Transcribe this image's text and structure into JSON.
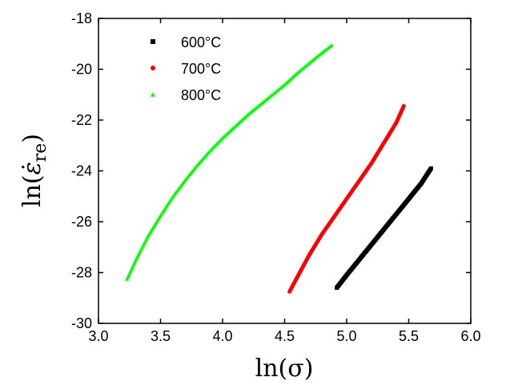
{
  "chart_data": {
    "type": "scatter",
    "xlabel": "ln(σ)",
    "ylabel": {
      "prefix": "ln(",
      "symbol": "ε̇",
      "subscript": "re",
      "suffix": ")"
    },
    "xlim": [
      3.0,
      6.0
    ],
    "ylim": [
      -30,
      -18
    ],
    "xticks": [
      "3.0",
      "3.5",
      "4.0",
      "4.5",
      "5.0",
      "5.5",
      "6.0"
    ],
    "yticks": [
      "-30",
      "-28",
      "-26",
      "-24",
      "-22",
      "-20",
      "-18"
    ],
    "grid": false,
    "legend_position": "top-left",
    "series": [
      {
        "name": "600°C",
        "marker": "square",
        "color": "#000000",
        "x": [
          4.92,
          5.0,
          5.1,
          5.2,
          5.3,
          5.4,
          5.5,
          5.6,
          5.68
        ],
        "y": [
          -28.6,
          -28.1,
          -27.5,
          -26.9,
          -26.3,
          -25.7,
          -25.1,
          -24.5,
          -23.9
        ]
      },
      {
        "name": "700°C",
        "marker": "circle",
        "color": "#ff0000",
        "x": [
          4.54,
          4.6,
          4.7,
          4.8,
          4.9,
          5.0,
          5.1,
          5.2,
          5.3,
          5.4,
          5.46
        ],
        "y": [
          -28.75,
          -28.2,
          -27.3,
          -26.5,
          -25.8,
          -25.1,
          -24.4,
          -23.7,
          -22.9,
          -22.1,
          -21.45
        ]
      },
      {
        "name": "800°C",
        "marker": "triangle",
        "color": "#00ff00",
        "x": [
          3.23,
          3.3,
          3.4,
          3.5,
          3.6,
          3.7,
          3.8,
          3.9,
          4.0,
          4.1,
          4.2,
          4.3,
          4.4,
          4.5,
          4.6,
          4.7,
          4.8,
          4.88
        ],
        "y": [
          -28.25,
          -27.5,
          -26.55,
          -25.75,
          -25.0,
          -24.35,
          -23.75,
          -23.2,
          -22.7,
          -22.25,
          -21.8,
          -21.4,
          -21.0,
          -20.6,
          -20.15,
          -19.75,
          -19.35,
          -19.05
        ]
      }
    ]
  }
}
